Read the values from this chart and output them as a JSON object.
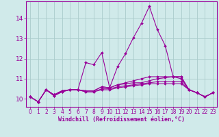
{
  "x": [
    0,
    1,
    2,
    3,
    4,
    5,
    6,
    7,
    8,
    9,
    10,
    11,
    12,
    13,
    14,
    15,
    16,
    17,
    18,
    19,
    20,
    21,
    22,
    23
  ],
  "series": [
    [
      10.1,
      9.85,
      10.45,
      10.2,
      10.4,
      10.45,
      10.45,
      11.8,
      11.7,
      12.3,
      10.55,
      11.6,
      12.25,
      13.05,
      13.75,
      14.6,
      13.45,
      12.65,
      11.1,
      11.1,
      10.45,
      10.3,
      10.1,
      10.3
    ],
    [
      10.1,
      9.85,
      10.45,
      10.2,
      10.4,
      10.45,
      10.45,
      10.4,
      10.4,
      10.6,
      10.55,
      10.7,
      10.8,
      10.9,
      11.0,
      11.1,
      11.1,
      11.1,
      11.1,
      11.1,
      10.45,
      10.3,
      10.1,
      10.3
    ],
    [
      10.1,
      9.85,
      10.45,
      10.2,
      10.4,
      10.45,
      10.45,
      10.4,
      10.4,
      10.6,
      10.55,
      10.7,
      10.75,
      10.8,
      10.8,
      10.9,
      11.0,
      11.05,
      11.1,
      11.0,
      10.45,
      10.3,
      10.1,
      10.3
    ],
    [
      10.1,
      9.85,
      10.45,
      10.15,
      10.35,
      10.45,
      10.45,
      10.35,
      10.35,
      10.5,
      10.5,
      10.6,
      10.65,
      10.7,
      10.75,
      10.8,
      10.85,
      10.85,
      10.85,
      10.85,
      10.45,
      10.3,
      10.1,
      10.3
    ],
    [
      10.1,
      9.85,
      10.45,
      10.15,
      10.35,
      10.45,
      10.45,
      10.35,
      10.35,
      10.45,
      10.45,
      10.55,
      10.6,
      10.65,
      10.7,
      10.75,
      10.75,
      10.75,
      10.75,
      10.75,
      10.45,
      10.3,
      10.1,
      10.3
    ]
  ],
  "line_color": "#990099",
  "bg_color": "#d0eaea",
  "grid_color": "#aacccc",
  "xlabel": "Windchill (Refroidissement éolien,°C)",
  "yticks": [
    10,
    11,
    12,
    13,
    14
  ],
  "ylim": [
    9.6,
    14.85
  ],
  "xlim": [
    -0.5,
    23.5
  ],
  "markersize": 2.0,
  "linewidth": 0.8,
  "xlabel_fontsize": 6.0,
  "tick_fontsize": 5.5,
  "ytick_fontsize": 6.5
}
